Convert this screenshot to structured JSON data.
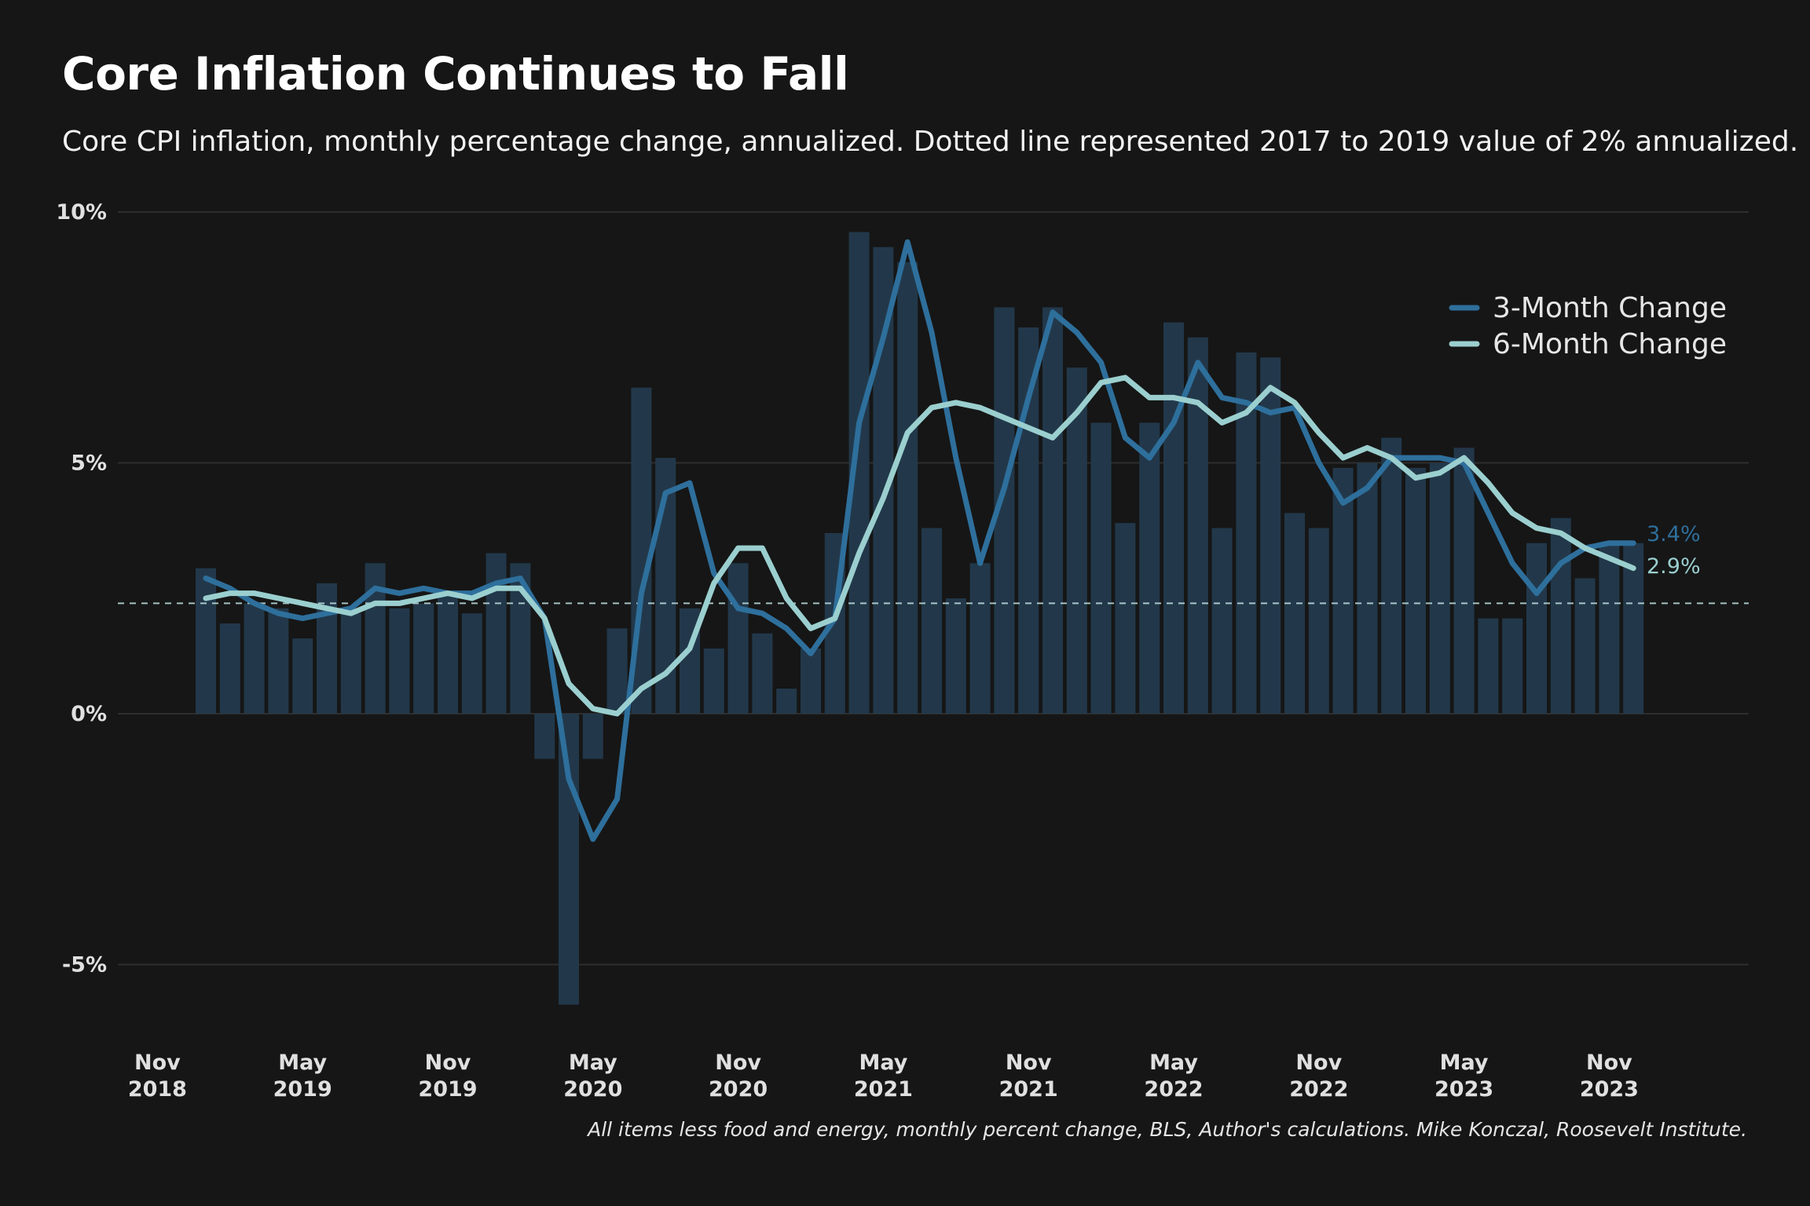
{
  "chart_data": {
    "type": "bar+line",
    "title": "Core Inflation Continues to Fall",
    "subtitle": "Core CPI inflation, monthly percentage change, annualized. Dotted line represented 2017 to 2019 value of 2% annualized.",
    "source": "All items less food and energy, monthly percent change, BLS, Author's calculations. Mike Konczal, Roosevelt Institute.",
    "ylim": [
      -6.2,
      10
    ],
    "yticks": [
      {
        "value": 10,
        "label": "10%"
      },
      {
        "value": 5,
        "label": "5%"
      },
      {
        "value": 0,
        "label": "0%"
      },
      {
        "value": -5,
        "label": "-5%"
      }
    ],
    "xticks": [
      {
        "month": "2018-11",
        "line1": "Nov",
        "line2": "2018"
      },
      {
        "month": "2019-05",
        "line1": "May",
        "line2": "2019"
      },
      {
        "month": "2019-11",
        "line1": "Nov",
        "line2": "2019"
      },
      {
        "month": "2020-05",
        "line1": "May",
        "line2": "2020"
      },
      {
        "month": "2020-11",
        "line1": "Nov",
        "line2": "2020"
      },
      {
        "month": "2021-05",
        "line1": "May",
        "line2": "2021"
      },
      {
        "month": "2021-11",
        "line1": "Nov",
        "line2": "2021"
      },
      {
        "month": "2022-05",
        "line1": "May",
        "line2": "2022"
      },
      {
        "month": "2022-11",
        "line1": "Nov",
        "line2": "2022"
      },
      {
        "month": "2023-05",
        "line1": "May",
        "line2": "2023"
      },
      {
        "month": "2023-11",
        "line1": "Nov",
        "line2": "2023"
      }
    ],
    "months": [
      "2019-01",
      "2019-02",
      "2019-03",
      "2019-04",
      "2019-05",
      "2019-06",
      "2019-07",
      "2019-08",
      "2019-09",
      "2019-10",
      "2019-11",
      "2019-12",
      "2020-01",
      "2020-02",
      "2020-03",
      "2020-04",
      "2020-05",
      "2020-06",
      "2020-07",
      "2020-08",
      "2020-09",
      "2020-10",
      "2020-11",
      "2020-12",
      "2021-01",
      "2021-02",
      "2021-03",
      "2021-04",
      "2021-05",
      "2021-06",
      "2021-07",
      "2021-08",
      "2021-09",
      "2021-10",
      "2021-11",
      "2021-12",
      "2022-01",
      "2022-02",
      "2022-03",
      "2022-04",
      "2022-05",
      "2022-06",
      "2022-07",
      "2022-08",
      "2022-09",
      "2022-10",
      "2022-11",
      "2022-12",
      "2023-01",
      "2023-02",
      "2023-03",
      "2023-04",
      "2023-05",
      "2023-06",
      "2023-07",
      "2023-08",
      "2023-09",
      "2023-10",
      "2023-11",
      "2023-12"
    ],
    "monthly_change": [
      2.9,
      1.8,
      2.2,
      2.1,
      1.5,
      2.6,
      2.0,
      3.0,
      2.1,
      2.2,
      2.4,
      2.0,
      3.2,
      3.0,
      -0.9,
      -5.8,
      -0.9,
      1.7,
      6.5,
      5.1,
      2.1,
      1.3,
      3.0,
      1.6,
      0.5,
      1.3,
      3.6,
      9.6,
      9.3,
      9.0,
      3.7,
      2.3,
      3.0,
      8.1,
      7.7,
      8.1,
      6.9,
      5.8,
      3.8,
      5.8,
      7.8,
      7.5,
      3.7,
      7.2,
      7.1,
      4.0,
      3.7,
      4.9,
      5.0,
      5.5,
      4.9,
      5.0,
      5.3,
      1.9,
      1.9,
      3.4,
      3.9,
      2.7,
      3.4,
      3.4
    ],
    "series": [
      {
        "name": "3-Month Change",
        "color": "#2e6f9c",
        "end_label": "3.4%",
        "values": [
          2.7,
          2.5,
          2.2,
          2.0,
          1.9,
          2.0,
          2.1,
          2.5,
          2.4,
          2.5,
          2.4,
          2.4,
          2.6,
          2.7,
          1.9,
          -1.3,
          -2.5,
          -1.7,
          2.4,
          4.4,
          4.6,
          2.8,
          2.1,
          2.0,
          1.7,
          1.2,
          1.9,
          5.8,
          7.5,
          9.4,
          7.6,
          5.1,
          3.0,
          4.5,
          6.3,
          8.0,
          7.6,
          7.0,
          5.5,
          5.1,
          5.8,
          7.0,
          6.3,
          6.2,
          6.0,
          6.1,
          5.0,
          4.2,
          4.5,
          5.1,
          5.1,
          5.1,
          5.0,
          4.0,
          3.0,
          2.4,
          3.0,
          3.3,
          3.4,
          3.4
        ]
      },
      {
        "name": "6-Month Change",
        "color": "#9bcfcf",
        "end_label": "2.9%",
        "values": [
          2.3,
          2.4,
          2.4,
          2.3,
          2.2,
          2.1,
          2.0,
          2.2,
          2.2,
          2.3,
          2.4,
          2.3,
          2.5,
          2.5,
          1.9,
          0.6,
          0.1,
          0.0,
          0.5,
          0.8,
          1.3,
          2.6,
          3.3,
          3.3,
          2.3,
          1.7,
          1.9,
          3.2,
          4.3,
          5.6,
          6.1,
          6.2,
          6.1,
          5.9,
          5.7,
          5.5,
          6.0,
          6.6,
          6.7,
          6.3,
          6.3,
          6.2,
          5.8,
          6.0,
          6.5,
          6.2,
          5.6,
          5.1,
          5.3,
          5.1,
          4.7,
          4.8,
          5.1,
          4.6,
          4.0,
          3.7,
          3.6,
          3.3,
          3.1,
          2.9
        ]
      }
    ],
    "reference_line": {
      "value": 2.2,
      "style": "dashed",
      "color": "#bfe0e0"
    },
    "bar_color": "#22384a",
    "grid": true,
    "legend": "top-right"
  }
}
